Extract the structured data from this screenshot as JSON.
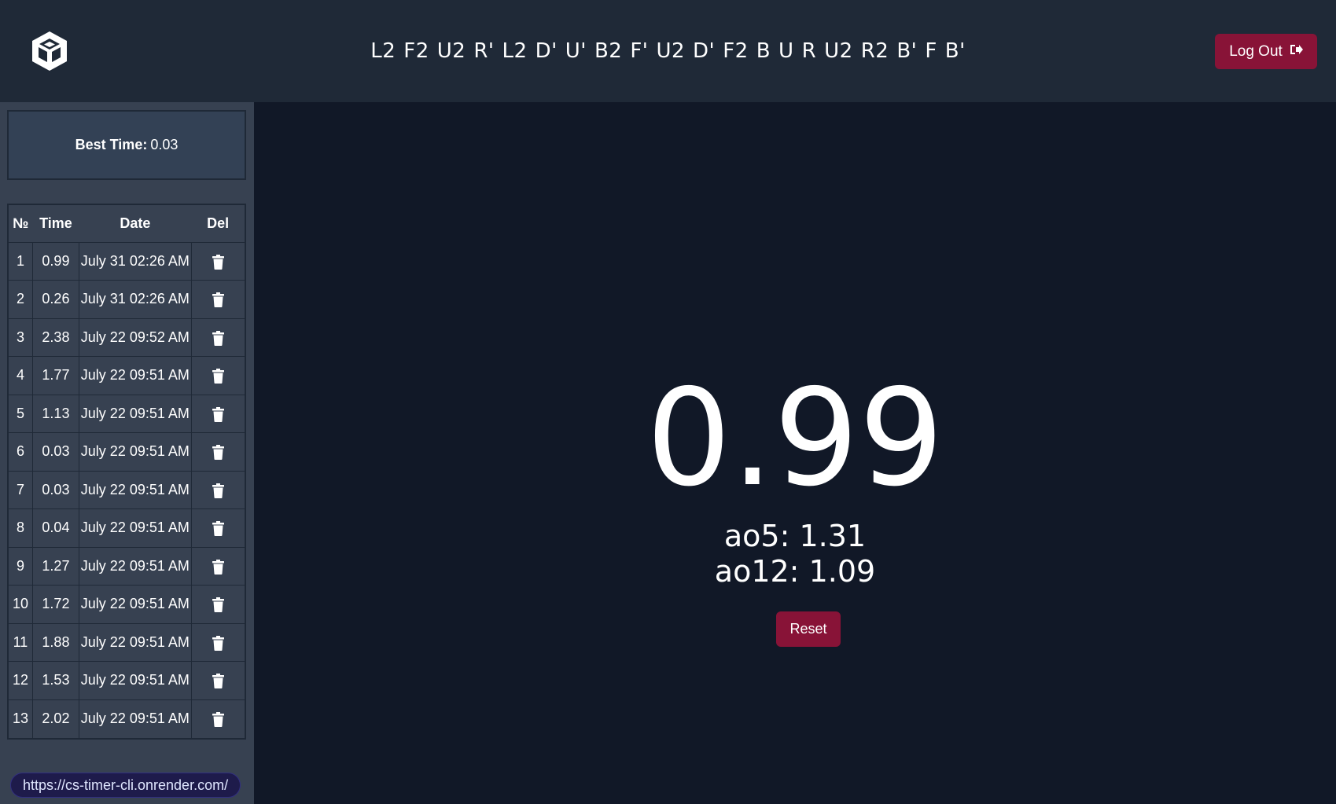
{
  "header": {
    "logo_icon": "cube-logo-icon",
    "scramble": [
      "L2",
      "F2",
      "U2",
      "R'",
      "L2",
      "D'",
      "U'",
      "B2",
      "F'",
      "U2",
      "D'",
      "F2",
      "B",
      "U",
      "R",
      "U2",
      "R2",
      "B'",
      "F",
      "B'"
    ],
    "logout_label": "Log Out",
    "logout_icon": "sign-out-icon"
  },
  "sidebar": {
    "best_time_label": "Best Time:",
    "best_time_value": "0.03",
    "table": {
      "headers": [
        "№",
        "Time",
        "Date",
        "Del"
      ],
      "delete_icon": "trash-icon",
      "rows": [
        {
          "no": "1",
          "time": "0.99",
          "date": "July 31 02:26 AM"
        },
        {
          "no": "2",
          "time": "0.26",
          "date": "July 31 02:26 AM"
        },
        {
          "no": "3",
          "time": "2.38",
          "date": "July 22 09:52 AM"
        },
        {
          "no": "4",
          "time": "1.77",
          "date": "July 22 09:51 AM"
        },
        {
          "no": "5",
          "time": "1.13",
          "date": "July 22 09:51 AM"
        },
        {
          "no": "6",
          "time": "0.03",
          "date": "July 22 09:51 AM"
        },
        {
          "no": "7",
          "time": "0.03",
          "date": "July 22 09:51 AM"
        },
        {
          "no": "8",
          "time": "0.04",
          "date": "July 22 09:51 AM"
        },
        {
          "no": "9",
          "time": "1.27",
          "date": "July 22 09:51 AM"
        },
        {
          "no": "10",
          "time": "1.72",
          "date": "July 22 09:51 AM"
        },
        {
          "no": "11",
          "time": "1.88",
          "date": "July 22 09:51 AM"
        },
        {
          "no": "12",
          "time": "1.53",
          "date": "July 22 09:51 AM"
        },
        {
          "no": "13",
          "time": "2.02",
          "date": "July 22 09:51 AM"
        }
      ]
    },
    "status_url": "https://cs-timer-cli.onrender.com/"
  },
  "main": {
    "current_time": "0.99",
    "ao5": "ao5: 1.31",
    "ao12": "ao12: 1.09",
    "reset_label": "Reset"
  },
  "colors": {
    "header_bg": "#1f2937",
    "sidebar_bg": "#374151",
    "main_bg": "#111827",
    "accent_button": "#881337"
  }
}
